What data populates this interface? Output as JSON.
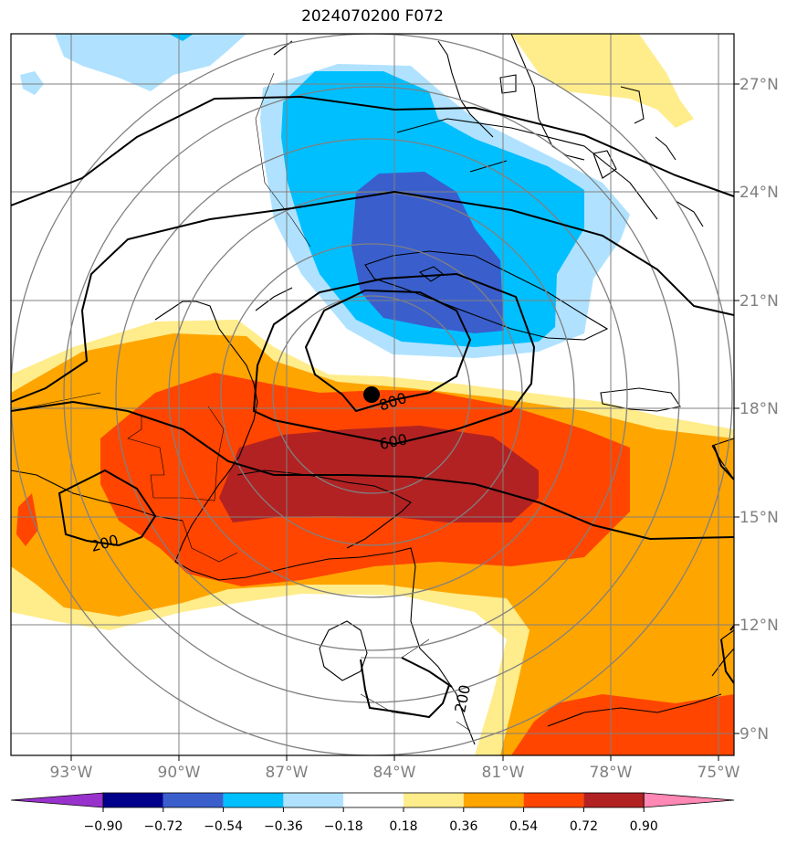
{
  "title": "2024070200 F072",
  "map": {
    "lon_labels": [
      "93°W",
      "90°W",
      "87°W",
      "84°W",
      "81°W",
      "78°W",
      "75°W"
    ],
    "lat_labels": [
      "27°N",
      "24°N",
      "21°N",
      "18°N",
      "15°N",
      "12°N",
      "9°N"
    ],
    "center_marker": "filled-circle",
    "contour_labels": [
      "800",
      "600",
      "200",
      "200"
    ]
  },
  "colorbar": {
    "ticks": [
      "−0.90",
      "−0.72",
      "−0.54",
      "−0.36",
      "−0.18",
      "0.18",
      "0.36",
      "0.54",
      "0.72",
      "0.90"
    ],
    "colors": [
      "#9932cc",
      "#00008b",
      "#3a5fcd",
      "#00bfff",
      "#b0e2ff",
      "#ffffff",
      "#ffec8b",
      "#ffa500",
      "#ff4500",
      "#b22222",
      "#ff88b4"
    ]
  }
}
